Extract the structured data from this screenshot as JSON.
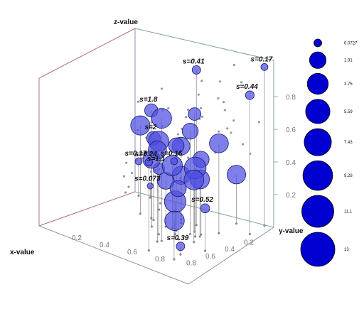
{
  "chart_data": {
    "type": "bubble3d",
    "title": "",
    "axis_titles": {
      "x": "x-value",
      "y": "y-value",
      "z": "z-value"
    },
    "x_ticks": [
      "0.2",
      "0.4",
      "0.6",
      "0.8"
    ],
    "y_ticks": [
      "0.2",
      "0.4",
      "0.6",
      "0.8"
    ],
    "z_ticks": [
      "0.2",
      "0.4",
      "0.6",
      "0.8"
    ],
    "xlim": [
      0,
      1
    ],
    "ylim": [
      0,
      1
    ],
    "zlim": [
      0,
      1
    ],
    "colors": {
      "bubble": "#4d4de0",
      "legend_bubble": "#0000d0",
      "scatter": "#999999",
      "box_x": "#b07080",
      "box_y": "#80a0a0",
      "box_z": "#9090b0"
    },
    "legend": {
      "position": "right",
      "values": [
        "0.0727",
        "1.91",
        "3.75",
        "5.59",
        "7.43",
        "9.28",
        "11.1",
        "13"
      ]
    },
    "bubbles": [
      {
        "x": 0.03,
        "y": 0.13,
        "z": 0.07,
        "s": 0.073,
        "label": "s=0.073"
      },
      {
        "x": 0.05,
        "y": 0.06,
        "z": 0.21,
        "s": 0.17,
        "label": "s=0.17"
      },
      {
        "x": 0.01,
        "y": 0.94,
        "z": 0.97,
        "s": 0.17,
        "label": "s=0.17"
      },
      {
        "x": 0.2,
        "y": 0.31,
        "z": 0.25,
        "s": 1.1,
        "label": "s=1.1"
      },
      {
        "x": 0.87,
        "y": 0.93,
        "z": 0.05,
        "s": 0.39,
        "label": "s=0.39"
      },
      {
        "x": 0.7,
        "y": 0.99,
        "z": 0.26,
        "s": 0.52,
        "label": "s=0.52"
      },
      {
        "x": 0.22,
        "y": 0.98,
        "z": 0.85,
        "s": 0.44,
        "label": "s=0.44"
      },
      {
        "x": 0.3,
        "y": 0.65,
        "z": 0.95,
        "s": 0.41,
        "label": "s=0.41"
      },
      {
        "x": 0.38,
        "y": 0.38,
        "z": 0.66,
        "s": 1.8,
        "label": "s=1.8"
      },
      {
        "x": 0.4,
        "y": 0.41,
        "z": 0.5,
        "s": 2,
        "label": "s=2"
      },
      {
        "x": 0.98,
        "y": 0.96,
        "z": 0.6,
        "s": 0.16,
        "label": "s=0.16"
      },
      {
        "x": 0.94,
        "y": 0.75,
        "z": 0.54,
        "s": 0.24,
        "label": "s=0.24"
      },
      {
        "x": 0.1,
        "y": 0.8,
        "z": 0.3,
        "s": 4.6,
        "label": ""
      },
      {
        "x": 0.33,
        "y": 0.56,
        "z": 0.47,
        "s": 4.1,
        "label": ""
      },
      {
        "x": 0.48,
        "y": 0.8,
        "z": 0.35,
        "s": 4.9,
        "label": ""
      },
      {
        "x": 0.34,
        "y": 0.84,
        "z": 0.55,
        "s": 4.8,
        "label": ""
      },
      {
        "x": 0.44,
        "y": 0.78,
        "z": 0.46,
        "s": 3.2,
        "label": ""
      },
      {
        "x": 0.48,
        "y": 0.63,
        "z": 0.52,
        "s": 2.8,
        "label": ""
      },
      {
        "x": 0.72,
        "y": 0.69,
        "z": 0.75,
        "s": 5.5,
        "label": ""
      },
      {
        "x": 0.35,
        "y": 0.28,
        "z": 0.54,
        "s": 5.0,
        "label": ""
      },
      {
        "x": 0.52,
        "y": 0.48,
        "z": 0.41,
        "s": 3.9,
        "label": ""
      },
      {
        "x": 0.27,
        "y": 0.52,
        "z": 0.27,
        "s": 4.3,
        "label": ""
      },
      {
        "x": 0.45,
        "y": 0.58,
        "z": 0.38,
        "s": 5.7,
        "label": ""
      },
      {
        "x": 0.5,
        "y": 0.78,
        "z": 0.42,
        "s": 6.8,
        "label": ""
      },
      {
        "x": 0.55,
        "y": 0.67,
        "z": 0.2,
        "s": 6.6,
        "label": ""
      },
      {
        "x": 0.46,
        "y": 0.54,
        "z": 0.28,
        "s": 3.4,
        "label": ""
      },
      {
        "x": 0.6,
        "y": 0.7,
        "z": 0.1,
        "s": 5.2,
        "label": ""
      },
      {
        "x": 0.42,
        "y": 0.72,
        "z": 0.72,
        "s": 1.6,
        "label": ""
      },
      {
        "x": 0.48,
        "y": 0.73,
        "z": 0.63,
        "s": 3.1,
        "label": ""
      },
      {
        "x": 0.62,
        "y": 0.6,
        "z": 0.57,
        "s": 5.6,
        "label": ""
      },
      {
        "x": 0.75,
        "y": 0.68,
        "z": 0.56,
        "s": 4.3,
        "label": ""
      },
      {
        "x": 0.62,
        "y": 0.74,
        "z": 0.31,
        "s": 3.2,
        "label": ""
      },
      {
        "x": 0.6,
        "y": 0.84,
        "z": 0.38,
        "s": 5.4,
        "label": ""
      }
    ],
    "points": [
      {
        "x": 0.05,
        "y": 0.75,
        "z": 0.95
      },
      {
        "x": 0.12,
        "y": 0.85,
        "z": 0.88
      },
      {
        "x": 0.1,
        "y": 0.55,
        "z": 0.82
      },
      {
        "x": 0.08,
        "y": 0.95,
        "z": 0.65
      },
      {
        "x": 0.2,
        "y": 0.75,
        "z": 0.88
      },
      {
        "x": 0.22,
        "y": 0.8,
        "z": 0.72
      },
      {
        "x": 0.18,
        "y": 0.6,
        "z": 0.68
      },
      {
        "x": 0.14,
        "y": 0.7,
        "z": 0.55
      },
      {
        "x": 0.1,
        "y": 0.9,
        "z": 0.45
      },
      {
        "x": 0.05,
        "y": 0.7,
        "z": 0.55
      },
      {
        "x": 0.12,
        "y": 0.45,
        "z": 0.58
      },
      {
        "x": 0.25,
        "y": 0.95,
        "z": 0.55
      },
      {
        "x": 0.3,
        "y": 0.9,
        "z": 0.62
      },
      {
        "x": 0.32,
        "y": 0.8,
        "z": 0.48
      },
      {
        "x": 0.28,
        "y": 0.62,
        "z": 0.6
      },
      {
        "x": 0.36,
        "y": 0.96,
        "z": 0.72
      },
      {
        "x": 0.45,
        "y": 0.95,
        "z": 0.85
      },
      {
        "x": 0.55,
        "y": 0.98,
        "z": 0.9
      },
      {
        "x": 0.6,
        "y": 0.9,
        "z": 0.78
      },
      {
        "x": 0.7,
        "y": 0.95,
        "z": 0.8
      },
      {
        "x": 0.78,
        "y": 0.85,
        "z": 0.7
      },
      {
        "x": 0.82,
        "y": 0.95,
        "z": 0.88
      },
      {
        "x": 0.85,
        "y": 0.78,
        "z": 0.74
      },
      {
        "x": 0.9,
        "y": 0.96,
        "z": 0.62
      },
      {
        "x": 0.68,
        "y": 0.78,
        "z": 0.62
      },
      {
        "x": 0.72,
        "y": 0.88,
        "z": 0.55
      },
      {
        "x": 0.4,
        "y": 0.3,
        "z": 0.7
      },
      {
        "x": 0.3,
        "y": 0.4,
        "z": 0.78
      },
      {
        "x": 0.22,
        "y": 0.35,
        "z": 0.62
      },
      {
        "x": 0.15,
        "y": 0.3,
        "z": 0.5
      },
      {
        "x": 0.2,
        "y": 0.22,
        "z": 0.42
      },
      {
        "x": 0.08,
        "y": 0.38,
        "z": 0.4
      },
      {
        "x": 0.3,
        "y": 0.5,
        "z": 0.38
      },
      {
        "x": 0.4,
        "y": 0.45,
        "z": 0.32
      },
      {
        "x": 0.55,
        "y": 0.4,
        "z": 0.58
      },
      {
        "x": 0.58,
        "y": 0.52,
        "z": 0.66
      },
      {
        "x": 0.65,
        "y": 0.5,
        "z": 0.45
      },
      {
        "x": 0.7,
        "y": 0.6,
        "z": 0.4
      },
      {
        "x": 0.8,
        "y": 0.7,
        "z": 0.45
      },
      {
        "x": 0.85,
        "y": 0.6,
        "z": 0.5
      },
      {
        "x": 0.92,
        "y": 0.82,
        "z": 0.3
      },
      {
        "x": 0.5,
        "y": 0.3,
        "z": 0.2
      },
      {
        "x": 0.38,
        "y": 0.2,
        "z": 0.3
      },
      {
        "x": 0.25,
        "y": 0.15,
        "z": 0.2
      },
      {
        "x": 0.18,
        "y": 0.45,
        "z": 0.22
      },
      {
        "x": 0.62,
        "y": 0.35,
        "z": 0.3
      },
      {
        "x": 0.75,
        "y": 0.45,
        "z": 0.25
      },
      {
        "x": 0.45,
        "y": 0.65,
        "z": 0.62
      },
      {
        "x": 0.52,
        "y": 0.6,
        "z": 0.75
      },
      {
        "x": 0.35,
        "y": 0.7,
        "z": 0.82
      }
    ]
  }
}
